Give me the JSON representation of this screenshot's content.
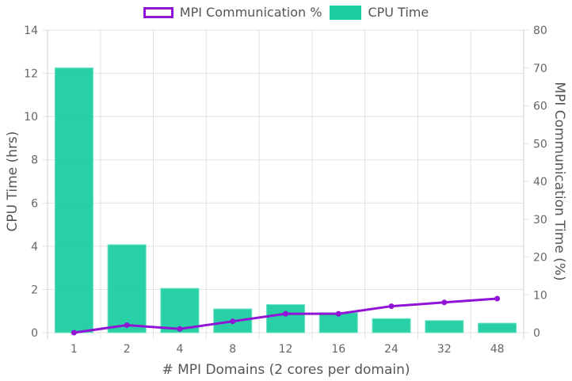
{
  "chart_data": {
    "type": "bar+line",
    "title": "",
    "xlabel": "# MPI Domains (2 cores per domain)",
    "ylabel": "CPU Time (hrs)",
    "y2label": "MPI Communication Time (%)",
    "categories": [
      "1",
      "2",
      "4",
      "8",
      "12",
      "16",
      "24",
      "32",
      "48"
    ],
    "ylim": [
      0,
      14
    ],
    "y2lim": [
      0,
      80
    ],
    "yticks": [
      0,
      2,
      4,
      6,
      8,
      10,
      12,
      14
    ],
    "y2ticks": [
      0,
      10,
      20,
      30,
      40,
      50,
      60,
      70,
      80
    ],
    "grid": true,
    "legend_position": "top",
    "series": [
      {
        "name": "MPI Communication %",
        "type": "line",
        "axis": "right",
        "color": "#9013d6",
        "values": [
          0,
          2,
          1,
          3,
          5,
          5,
          7,
          8,
          9
        ]
      },
      {
        "name": "CPU Time",
        "type": "bar",
        "axis": "left",
        "color": "#1dcca0",
        "values": [
          12.25,
          4.07,
          2.05,
          1.1,
          1.3,
          0.92,
          0.65,
          0.56,
          0.44
        ]
      }
    ]
  },
  "legend": {
    "items": [
      {
        "label": "MPI Communication %",
        "color": "#9013d6"
      },
      {
        "label": "CPU Time",
        "color": "#1dcca0"
      }
    ]
  }
}
